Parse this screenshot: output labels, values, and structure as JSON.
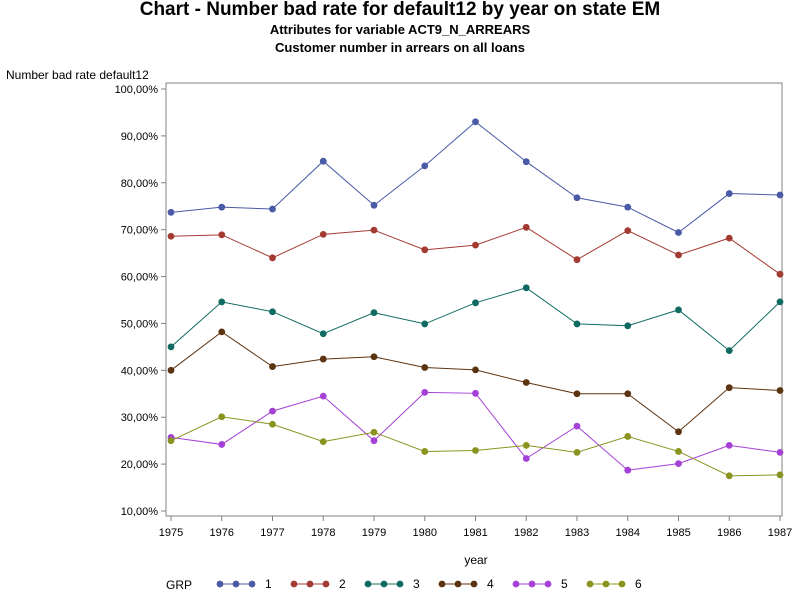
{
  "titles": {
    "main": "Chart - Number bad rate for default12 by year on state EM",
    "sub1": "Attributes for variable ACT9_N_ARREARS",
    "sub2": "Customer number in arrears on all loans"
  },
  "chart_data": {
    "type": "line",
    "ylabel": "Number bad rate default12",
    "xlabel": "year",
    "ylim": [
      0.1,
      1.0
    ],
    "yticks": [
      0.1,
      0.2,
      0.3,
      0.4,
      0.5,
      0.6,
      0.7,
      0.8,
      0.9,
      1.0
    ],
    "ytick_labels": [
      "10,00%",
      "20,00%",
      "30,00%",
      "40,00%",
      "50,00%",
      "60,00%",
      "70,00%",
      "80,00%",
      "90,00%",
      "100,00%"
    ],
    "x": [
      "1975",
      "1976",
      "1977",
      "1978",
      "1979",
      "1980",
      "1981",
      "1982",
      "1983",
      "1984",
      "1985",
      "1986",
      "1987"
    ],
    "legend_title": "GRP",
    "legend_position": "bottom",
    "grid": false,
    "series": [
      {
        "name": "1",
        "color": "#4a5aa6",
        "values": [
          0.737,
          0.748,
          0.744,
          0.846,
          0.752,
          0.836,
          0.93,
          0.845,
          0.768,
          0.748,
          0.694,
          0.777,
          0.774
        ]
      },
      {
        "name": "2",
        "color": "#a33b33",
        "values": [
          0.686,
          0.689,
          0.64,
          0.69,
          0.699,
          0.657,
          0.667,
          0.705,
          0.636,
          0.698,
          0.646,
          0.682,
          0.605
        ]
      },
      {
        "name": "3",
        "color": "#0f6b62",
        "values": [
          0.45,
          0.546,
          0.525,
          0.478,
          0.523,
          0.499,
          0.544,
          0.576,
          0.499,
          0.495,
          0.529,
          0.442,
          0.546
        ]
      },
      {
        "name": "4",
        "color": "#5c3311",
        "values": [
          0.4,
          0.482,
          0.408,
          0.424,
          0.429,
          0.406,
          0.401,
          0.374,
          0.35,
          0.35,
          0.269,
          0.363,
          0.357
        ]
      },
      {
        "name": "5",
        "color": "#a541d6",
        "values": [
          0.257,
          0.242,
          0.313,
          0.345,
          0.25,
          0.353,
          0.351,
          0.212,
          0.281,
          0.187,
          0.201,
          0.24,
          0.225
        ]
      },
      {
        "name": "6",
        "color": "#8a9320",
        "values": [
          0.25,
          0.301,
          0.285,
          0.248,
          0.268,
          0.227,
          0.229,
          0.24,
          0.225,
          0.259,
          0.227,
          0.175,
          0.177
        ]
      }
    ]
  }
}
